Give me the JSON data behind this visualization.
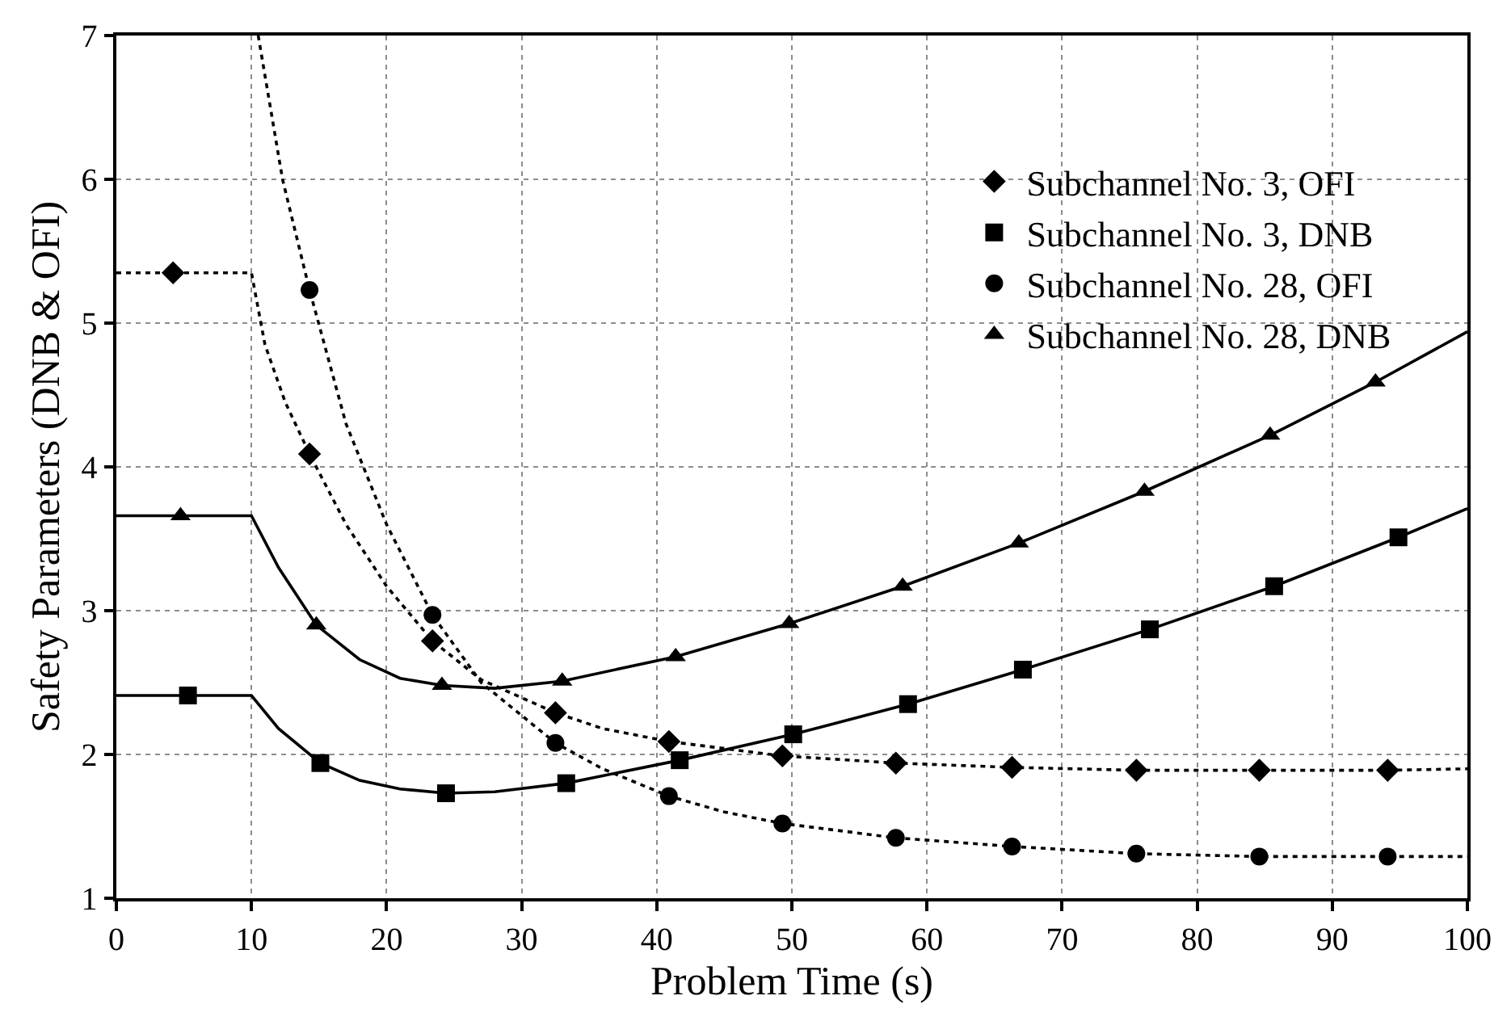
{
  "chart_data": {
    "type": "line",
    "xlabel": "Problem Time (s)",
    "ylabel": "Safety Parameters (DNB & OFI)",
    "xlim": [
      0,
      100
    ],
    "xticks": [
      0,
      10,
      20,
      30,
      40,
      50,
      60,
      70,
      80,
      90,
      100
    ],
    "ylim": [
      1,
      7
    ],
    "yticks": [
      1,
      2,
      3,
      4,
      5,
      6,
      7
    ],
    "grid": true,
    "legend": "top right",
    "series": [
      {
        "color": "#000000",
        "line_style": "dotted",
        "marker": "none",
        "x": [
          0,
          4.2,
          10,
          11,
          12.5,
          14.3,
          17,
          20,
          23.4,
          27,
          32.5,
          36,
          40.9,
          49.3,
          57.7,
          66.3,
          75.5,
          84.6,
          94.1,
          100
        ],
        "values": [
          5.35,
          5.35,
          5.35,
          4.85,
          4.45,
          4.09,
          3.6,
          3.17,
          2.79,
          2.52,
          2.29,
          2.18,
          2.09,
          1.99,
          1.94,
          1.91,
          1.89,
          1.89,
          1.89,
          1.9
        ]
      },
      {
        "color": "#000000",
        "line_style": "solid",
        "marker": "none",
        "x": [
          0,
          5.3,
          10,
          12,
          15.1,
          18,
          21,
          24.4,
          28,
          33.3,
          41.7,
          50.1,
          58.6,
          67.1,
          76.5,
          85.7,
          94.9,
          100
        ],
        "values": [
          2.41,
          2.41,
          2.41,
          2.18,
          1.94,
          1.82,
          1.76,
          1.73,
          1.74,
          1.8,
          1.96,
          2.14,
          2.35,
          2.59,
          2.87,
          3.17,
          3.51,
          3.71
        ]
      },
      {
        "color": "#000000",
        "line_style": "dotted",
        "marker": "none",
        "x": [
          10.5,
          12.3,
          14.3,
          17,
          20,
          23.4,
          27,
          32.5,
          36,
          40.9,
          45,
          49.3,
          57.7,
          66.3,
          75.5,
          84.6,
          94.1,
          100
        ],
        "values": [
          7.0,
          6.0,
          5.23,
          4.3,
          3.6,
          2.97,
          2.5,
          2.08,
          1.9,
          1.71,
          1.6,
          1.52,
          1.42,
          1.36,
          1.31,
          1.29,
          1.29,
          1.29
        ]
      },
      {
        "color": "#000000",
        "line_style": "solid",
        "marker": "none",
        "x": [
          0,
          4.75,
          10,
          12,
          14.8,
          18,
          21,
          24.1,
          28,
          33,
          41.4,
          49.8,
          58.2,
          66.8,
          76.1,
          85.4,
          93.2,
          100
        ],
        "values": [
          3.66,
          3.66,
          3.66,
          3.3,
          2.9,
          2.66,
          2.53,
          2.48,
          2.46,
          2.51,
          2.68,
          2.91,
          3.17,
          3.47,
          3.83,
          4.22,
          4.59,
          4.94
        ]
      },
      {
        "type": "scatter",
        "name": "Subchannel No. 3, OFI",
        "color": "#000000",
        "marker": "diamond",
        "x": [
          4.2,
          14.3,
          23.4,
          32.5,
          40.9,
          49.3,
          57.7,
          66.3,
          75.5,
          84.6,
          94.1
        ],
        "values": [
          5.35,
          4.09,
          2.79,
          2.29,
          2.09,
          1.99,
          1.94,
          1.91,
          1.89,
          1.89,
          1.89
        ]
      },
      {
        "type": "scatter",
        "name": "Subchannel No. 3, DNB",
        "color": "#000000",
        "marker": "square",
        "x": [
          5.3,
          15.1,
          24.4,
          33.3,
          41.7,
          50.1,
          58.6,
          67.1,
          76.5,
          85.7,
          94.9
        ],
        "values": [
          2.41,
          1.94,
          1.73,
          1.8,
          1.96,
          2.14,
          2.35,
          2.59,
          2.87,
          3.17,
          3.51
        ]
      },
      {
        "type": "scatter",
        "name": "Subchannel No. 28, OFI",
        "color": "#000000",
        "marker": "circle",
        "x": [
          14.3,
          23.4,
          32.5,
          40.9,
          49.3,
          57.7,
          66.3,
          75.5,
          84.6,
          94.1
        ],
        "values": [
          5.23,
          2.97,
          2.08,
          1.71,
          1.52,
          1.42,
          1.36,
          1.31,
          1.29,
          1.29
        ]
      },
      {
        "type": "scatter",
        "name": "Subchannel No. 28, DNB",
        "color": "#000000",
        "marker": "triangle",
        "x": [
          4.75,
          14.8,
          24.1,
          33.0,
          41.4,
          49.8,
          58.2,
          66.8,
          76.1,
          85.4,
          93.2
        ],
        "values": [
          3.66,
          2.9,
          2.48,
          2.51,
          2.68,
          2.91,
          3.17,
          3.47,
          3.83,
          4.22,
          4.59
        ]
      }
    ]
  }
}
